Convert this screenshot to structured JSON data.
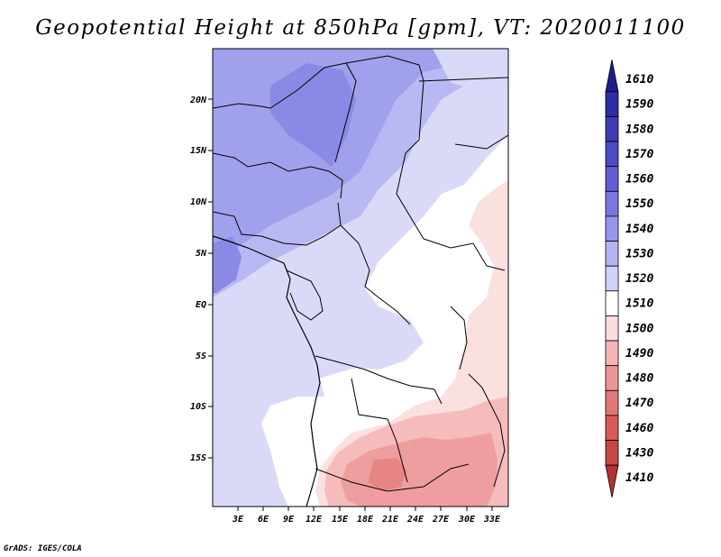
{
  "title": "Geopotential Height at 850hPa [gpm], VT: 2020011100",
  "credit": "GrADS: IGES/COLA",
  "map": {
    "region": "Central Africa",
    "lat_labels": [
      "20N",
      "15N",
      "10N",
      "5N",
      "EQ",
      "5S",
      "10S",
      "15S"
    ],
    "lon_labels": [
      "3E",
      "6E",
      "9E",
      "12E",
      "15E",
      "18E",
      "21E",
      "24E",
      "27E",
      "30E",
      "33E"
    ]
  },
  "colorbar": {
    "levels": [
      "1610",
      "1590",
      "1580",
      "1570",
      "1560",
      "1550",
      "1540",
      "1530",
      "1520",
      "1510",
      "1500",
      "1490",
      "1480",
      "1470",
      "1460",
      "1430",
      "1410"
    ],
    "colors": [
      "#1e1e8c",
      "#2d2da4",
      "#3c3cb4",
      "#4b4bc4",
      "#5f5fd2",
      "#7878e0",
      "#9696ea",
      "#b4b4f2",
      "#d2d2f8",
      "#ffffff",
      "#fadcdc",
      "#f5b4b4",
      "#eb9696",
      "#e17878",
      "#d75a5a",
      "#c84646",
      "#b43232"
    ]
  }
}
